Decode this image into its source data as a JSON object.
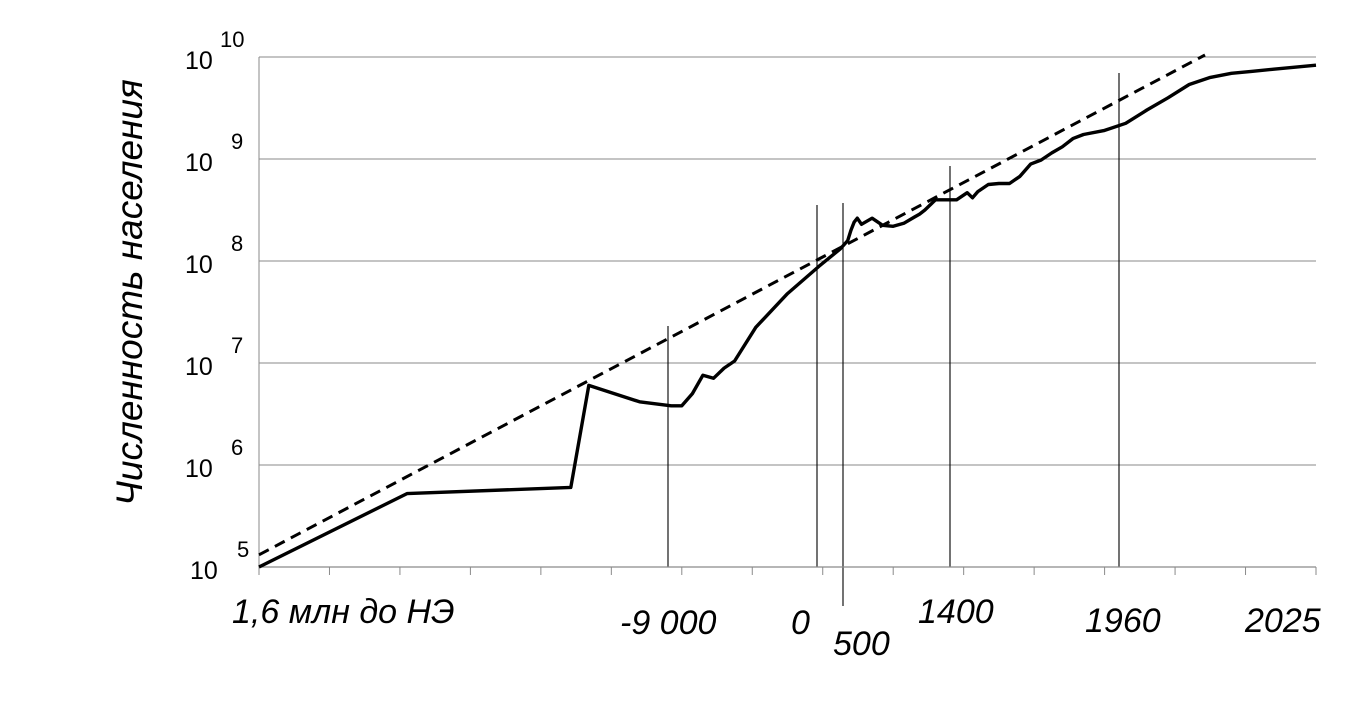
{
  "chart_data": {
    "type": "line",
    "title": "",
    "ylabel": "Численность населения",
    "xlabel": "",
    "y_scale": "log",
    "ylim_exponent": [
      5,
      10
    ],
    "y_ticks": [
      {
        "base": "10",
        "exp": "5"
      },
      {
        "base": "10",
        "exp": "6"
      },
      {
        "base": "10",
        "exp": "7"
      },
      {
        "base": "10",
        "exp": "8"
      },
      {
        "base": "10",
        "exp": "9"
      },
      {
        "base": "10",
        "exp": "10"
      }
    ],
    "x_tick_labels": [
      "1,6 млн до НЭ",
      "-9 000",
      "0",
      "500",
      "1400",
      "1960",
      "2025"
    ],
    "grid": "horizontal",
    "series": [
      {
        "style": "solid",
        "x_index": [
          0,
          14,
          29.5,
          31.2,
          36,
          39,
          40,
          41,
          42,
          43,
          44,
          45,
          47,
          50,
          53,
          55,
          55.7,
          56,
          56.3,
          56.6,
          57,
          58,
          59,
          60,
          61,
          62,
          62.5,
          63,
          63.5,
          64,
          65,
          66,
          67,
          67.5,
          68,
          69,
          70,
          71,
          71.3,
          72,
          73,
          74,
          75,
          76,
          77,
          78,
          80,
          82,
          84,
          86,
          88,
          90,
          92,
          94,
          96,
          98,
          100
        ],
        "y_log10": [
          5.0,
          5.72,
          5.78,
          6.78,
          6.62,
          6.58,
          6.58,
          6.7,
          6.88,
          6.85,
          6.95,
          7.02,
          7.35,
          7.68,
          7.95,
          8.12,
          8.2,
          8.3,
          8.38,
          8.42,
          8.36,
          8.42,
          8.35,
          8.34,
          8.37,
          8.43,
          8.46,
          8.5,
          8.55,
          8.6,
          8.6,
          8.6,
          8.67,
          8.62,
          8.68,
          8.75,
          8.76,
          8.76,
          8.78,
          8.83,
          8.95,
          8.99,
          9.06,
          9.12,
          9.2,
          9.24,
          9.28,
          9.35,
          9.48,
          9.6,
          9.73,
          9.8,
          9.84,
          9.86,
          9.88,
          9.9,
          9.92
        ]
      },
      {
        "style": "dashed",
        "x_index": [
          0,
          89.5
        ],
        "y_log10": [
          5.12,
          10.02
        ]
      }
    ],
    "vertical_markers": [
      "-9 000",
      "0",
      "500",
      "1400",
      "1960"
    ]
  }
}
